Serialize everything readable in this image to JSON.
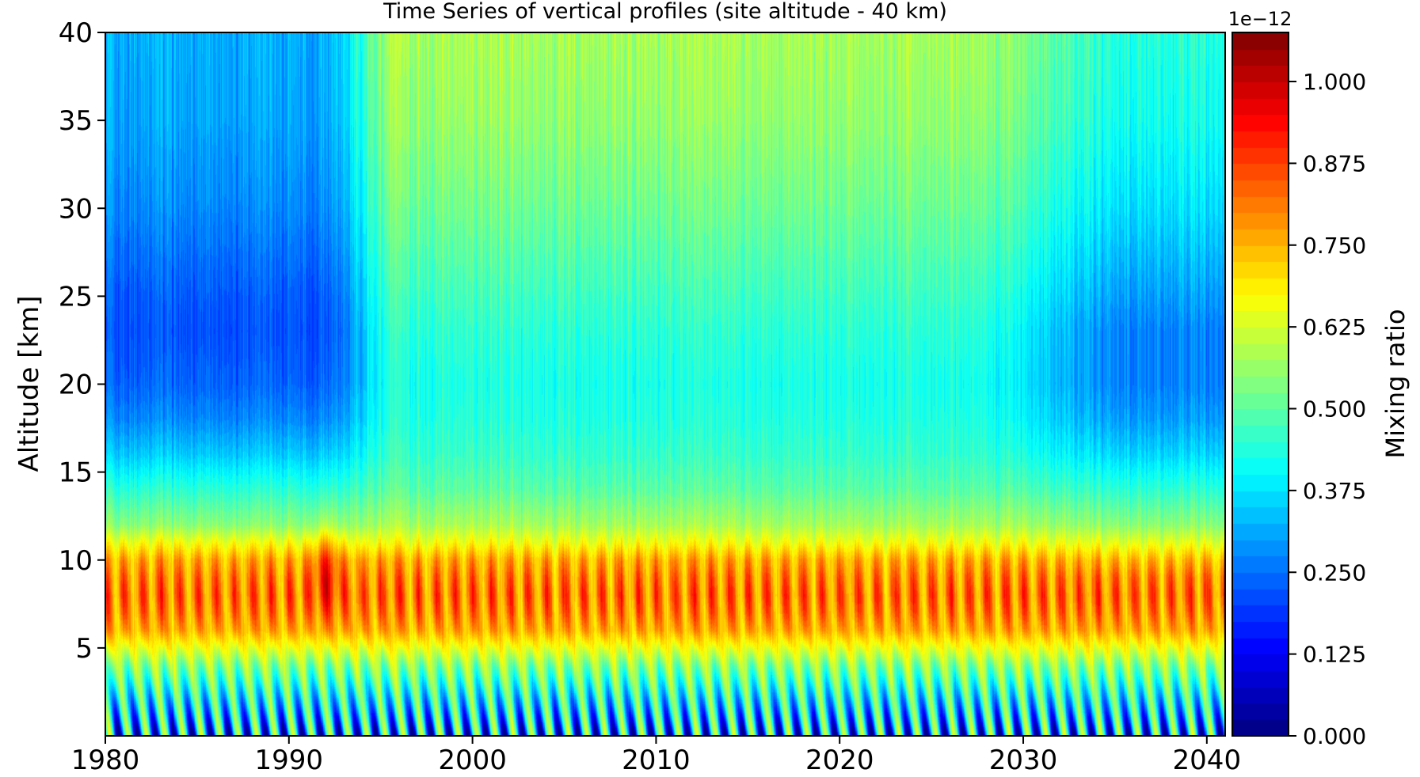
{
  "chart_data": {
    "type": "heatmap",
    "title": "Time Series of vertical profiles (site altitude - 40 km)",
    "xlabel": "",
    "ylabel": "Altitude [km]",
    "xlim": [
      1980,
      2041
    ],
    "ylim": [
      0,
      40
    ],
    "xticks": [
      1980,
      1990,
      2000,
      2010,
      2020,
      2030,
      2040
    ],
    "xtick_labels": [
      "1980",
      "1990",
      "2000",
      "2010",
      "2020",
      "2030",
      "2040"
    ],
    "yticks": [
      5,
      10,
      15,
      20,
      25,
      30,
      35,
      40
    ],
    "ytick_labels": [
      "5",
      "10",
      "15",
      "20",
      "25",
      "30",
      "35",
      "40"
    ],
    "colormap": "jet",
    "colorbar": {
      "label": "Mixing ratio",
      "offset_text": "1e−12",
      "range": [
        0.0,
        1.075
      ],
      "ticks": [
        0.0,
        0.125,
        0.25,
        0.375,
        0.5,
        0.625,
        0.75,
        0.875,
        1.0
      ],
      "tick_labels": [
        "0.000",
        "0.125",
        "0.250",
        "0.375",
        "0.500",
        "0.625",
        "0.750",
        "0.875",
        "1.000"
      ],
      "levels": 43
    },
    "profile": {
      "altitude_km": [
        0,
        2,
        4,
        6,
        7,
        8,
        9,
        10,
        11,
        12,
        14,
        16,
        18,
        20,
        23,
        25,
        30,
        35,
        40
      ],
      "mean_value_1980s": [
        0.3,
        0.4,
        0.55,
        0.76,
        0.8,
        0.82,
        0.8,
        0.76,
        0.66,
        0.55,
        0.45,
        0.35,
        0.28,
        0.24,
        0.22,
        0.23,
        0.28,
        0.31,
        0.32
      ],
      "mean_value_2000s": [
        0.3,
        0.4,
        0.55,
        0.76,
        0.8,
        0.82,
        0.8,
        0.76,
        0.66,
        0.58,
        0.5,
        0.46,
        0.44,
        0.43,
        0.45,
        0.47,
        0.52,
        0.56,
        0.58
      ],
      "mean_value_2030s": [
        0.3,
        0.4,
        0.55,
        0.76,
        0.8,
        0.82,
        0.8,
        0.74,
        0.64,
        0.55,
        0.45,
        0.36,
        0.3,
        0.27,
        0.27,
        0.3,
        0.37,
        0.42,
        0.44
      ]
    },
    "seasonal_cycle_per_year": 1,
    "notable_event": {
      "year": 1992,
      "altitude_km": [
        8,
        13
      ],
      "value_approx": 0.9
    }
  }
}
